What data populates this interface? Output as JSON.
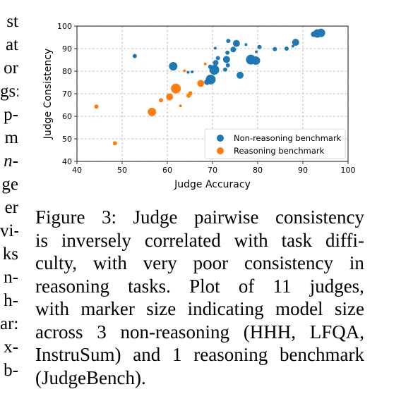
{
  "left_column_fragments": [
    "st",
    "at",
    "or",
    "gs:",
    "p-",
    "m",
    "n-",
    "ge",
    "er",
    "vi-",
    "ks",
    "n-",
    "h-",
    "ar:",
    "x-",
    "b-"
  ],
  "left_column_italic_indices": [
    6
  ],
  "chart_data": {
    "type": "scatter",
    "xlabel": "Judge Accuracy",
    "ylabel": "Judge Consistency",
    "xlim": [
      40,
      100
    ],
    "ylim": [
      40,
      100
    ],
    "xticks": [
      "40",
      "50",
      "60",
      "70",
      "80",
      "90",
      "100"
    ],
    "yticks": [
      "40",
      "50",
      "60",
      "70",
      "80",
      "90",
      "100"
    ],
    "grid": true,
    "legend_position": "lower-right",
    "series": [
      {
        "name": "Non-reasoning benchmark",
        "color": "#1f77b4",
        "points": [
          {
            "x": 52.8,
            "y": 86.7,
            "s": 3
          },
          {
            "x": 61.3,
            "y": 82.2,
            "s": 6
          },
          {
            "x": 64.6,
            "y": 79.5,
            "s": 2
          },
          {
            "x": 65.5,
            "y": 79.7,
            "s": 2
          },
          {
            "x": 69.6,
            "y": 76.3,
            "s": 7
          },
          {
            "x": 68.8,
            "y": 75.2,
            "s": 4
          },
          {
            "x": 70.4,
            "y": 80.6,
            "s": 7
          },
          {
            "x": 69.5,
            "y": 82.0,
            "s": 3
          },
          {
            "x": 70.7,
            "y": 83.7,
            "s": 4
          },
          {
            "x": 71.2,
            "y": 85.8,
            "s": 3
          },
          {
            "x": 70.6,
            "y": 90.2,
            "s": 2
          },
          {
            "x": 72.8,
            "y": 80.7,
            "s": 3
          },
          {
            "x": 73.1,
            "y": 85.2,
            "s": 5
          },
          {
            "x": 73.3,
            "y": 88.2,
            "s": 3
          },
          {
            "x": 73.5,
            "y": 93.4,
            "s": 3
          },
          {
            "x": 73.4,
            "y": 82.6,
            "s": 3
          },
          {
            "x": 74.6,
            "y": 89.6,
            "s": 4
          },
          {
            "x": 75.3,
            "y": 92.3,
            "s": 5
          },
          {
            "x": 76.1,
            "y": 78.2,
            "s": 5
          },
          {
            "x": 77.4,
            "y": 91.8,
            "s": 2
          },
          {
            "x": 78.5,
            "y": 85.1,
            "s": 7
          },
          {
            "x": 79.6,
            "y": 84.7,
            "s": 6
          },
          {
            "x": 79.7,
            "y": 88.6,
            "s": 2
          },
          {
            "x": 80.4,
            "y": 90.7,
            "s": 3
          },
          {
            "x": 83.8,
            "y": 89.8,
            "s": 3
          },
          {
            "x": 86.4,
            "y": 90.0,
            "s": 3
          },
          {
            "x": 87.8,
            "y": 91.1,
            "s": 2
          },
          {
            "x": 88.4,
            "y": 92.8,
            "s": 5
          },
          {
            "x": 92.4,
            "y": 96.4,
            "s": 4
          },
          {
            "x": 93.2,
            "y": 96.7,
            "s": 6
          },
          {
            "x": 94.0,
            "y": 97.0,
            "s": 6
          }
        ]
      },
      {
        "name": "Reasoning benchmark",
        "color": "#ff7f0e",
        "points": [
          {
            "x": 44.3,
            "y": 64.3,
            "s": 3
          },
          {
            "x": 48.4,
            "y": 48.0,
            "s": 3
          },
          {
            "x": 56.6,
            "y": 61.9,
            "s": 6
          },
          {
            "x": 58.6,
            "y": 67.1,
            "s": 3
          },
          {
            "x": 60.5,
            "y": 68.6,
            "s": 5
          },
          {
            "x": 61.9,
            "y": 72.3,
            "s": 7
          },
          {
            "x": 62.9,
            "y": 64.6,
            "s": 2
          },
          {
            "x": 63.8,
            "y": 80.2,
            "s": 2
          },
          {
            "x": 64.7,
            "y": 69.1,
            "s": 3
          },
          {
            "x": 65.1,
            "y": 70.2,
            "s": 3
          },
          {
            "x": 67.4,
            "y": 74.6,
            "s": 5
          },
          {
            "x": 68.4,
            "y": 83.2,
            "s": 2
          }
        ]
      }
    ]
  },
  "caption": {
    "lines": [
      [
        "Figure",
        "3:",
        "Judge",
        "pairwise",
        "consistency"
      ],
      [
        "is",
        "inversely",
        "correlated",
        "with",
        "task",
        "diffi-"
      ],
      [
        "culty,",
        "with",
        "very",
        "poor",
        "consistency",
        "in"
      ],
      [
        "reasoning",
        "tasks.",
        "Plot",
        "of",
        "11",
        "judges,"
      ],
      [
        "with",
        "marker",
        "size",
        "indicating",
        "model",
        "size"
      ],
      [
        "across",
        "3",
        "non-reasoning",
        "(HHH,",
        "LFQA,"
      ],
      [
        "InstruSum)",
        "and",
        "1",
        "reasoning",
        "benchmark"
      ],
      [
        "(JudgeBench)."
      ]
    ]
  }
}
